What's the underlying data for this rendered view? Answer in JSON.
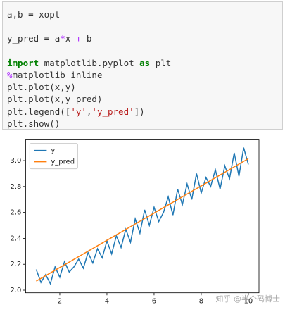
{
  "cell": {
    "lines": [
      [
        {
          "t": "a,b = xopt",
          "k": "plain"
        }
      ],
      [],
      [
        {
          "t": "y_pred = a",
          "k": "plain"
        },
        {
          "t": "*",
          "k": "op"
        },
        {
          "t": "x ",
          "k": "plain"
        },
        {
          "t": "+",
          "k": "op"
        },
        {
          "t": " b",
          "k": "plain"
        }
      ],
      [],
      [
        {
          "t": "import",
          "k": "kw"
        },
        {
          "t": " matplotlib.pyplot ",
          "k": "plain"
        },
        {
          "t": "as",
          "k": "kw"
        },
        {
          "t": " plt",
          "k": "plain"
        }
      ],
      [
        {
          "t": "%",
          "k": "op"
        },
        {
          "t": "matplotlib inline",
          "k": "plain"
        }
      ],
      [
        {
          "t": "plt.plot(x,y)",
          "k": "plain"
        }
      ],
      [
        {
          "t": "plt.plot(x,y_pred)",
          "k": "plain"
        }
      ],
      [
        {
          "t": "plt.legend([",
          "k": "plain"
        },
        {
          "t": "'y'",
          "k": "str"
        },
        {
          "t": ",",
          "k": "plain"
        },
        {
          "t": "'y_pred'",
          "k": "str"
        },
        {
          "t": "])",
          "k": "plain"
        }
      ],
      [
        {
          "t": "plt.show()",
          "k": "plain"
        }
      ]
    ]
  },
  "chart_data": {
    "type": "line",
    "x": [
      1.0,
      1.2,
      1.4,
      1.6,
      1.8,
      2.0,
      2.2,
      2.4,
      2.6,
      2.8,
      3.0,
      3.2,
      3.4,
      3.6,
      3.8,
      4.0,
      4.2,
      4.4,
      4.6,
      4.8,
      5.0,
      5.2,
      5.4,
      5.6,
      5.8,
      6.0,
      6.2,
      6.4,
      6.6,
      6.8,
      7.0,
      7.2,
      7.4,
      7.6,
      7.8,
      8.0,
      8.2,
      8.4,
      8.6,
      8.8,
      9.0,
      9.2,
      9.4,
      9.6,
      9.8,
      10.0
    ],
    "series": [
      {
        "name": "y",
        "color": "#1f77b4",
        "values": [
          2.16,
          2.06,
          2.12,
          2.05,
          2.18,
          2.1,
          2.22,
          2.14,
          2.18,
          2.24,
          2.17,
          2.29,
          2.21,
          2.32,
          2.25,
          2.38,
          2.28,
          2.42,
          2.33,
          2.47,
          2.37,
          2.55,
          2.44,
          2.62,
          2.5,
          2.64,
          2.53,
          2.6,
          2.72,
          2.58,
          2.78,
          2.66,
          2.82,
          2.7,
          2.9,
          2.75,
          2.87,
          2.8,
          2.93,
          2.78,
          2.96,
          2.86,
          3.06,
          2.88,
          3.1,
          2.97
        ]
      },
      {
        "name": "y_pred",
        "color": "#ff7f0e",
        "values": [
          2.07,
          2.091,
          2.112,
          2.133,
          2.154,
          2.175,
          2.196,
          2.217,
          2.238,
          2.259,
          2.28,
          2.301,
          2.322,
          2.343,
          2.364,
          2.385,
          2.406,
          2.427,
          2.448,
          2.469,
          2.49,
          2.511,
          2.532,
          2.553,
          2.574,
          2.595,
          2.616,
          2.637,
          2.658,
          2.679,
          2.7,
          2.721,
          2.742,
          2.763,
          2.784,
          2.805,
          2.826,
          2.847,
          2.868,
          2.889,
          2.91,
          2.931,
          2.952,
          2.973,
          2.994,
          3.015
        ]
      }
    ],
    "xlim": [
      0.55,
      10.45
    ],
    "ylim": [
      1.98,
      3.16
    ],
    "xticks": [
      2,
      4,
      6,
      8,
      10
    ],
    "yticks": [
      {
        "value": 2,
        "label": "2.0"
      },
      2.2,
      2.4,
      2.6,
      2.8,
      {
        "value": 3,
        "label": "3.0"
      }
    ],
    "legend": "upper left",
    "watermark": "知乎 @半个码博士"
  }
}
